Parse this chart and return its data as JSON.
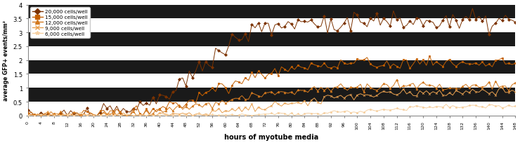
{
  "title": "",
  "xlabel": "hours of myotube media",
  "ylabel": "average GFP+ events/mm²",
  "xlim": [
    0,
    148
  ],
  "ylim": [
    0,
    4
  ],
  "yticks": [
    0,
    0.5,
    1,
    1.5,
    2,
    2.5,
    3,
    3.5,
    4
  ],
  "xtick_step": 4,
  "legend_labels": [
    "20,000 cells/well",
    "15,000 cells/well",
    "12,000 cells/well",
    "9,000 cells/well",
    "6,000 cells/well"
  ],
  "line_colors": [
    "#7B3200",
    "#C45F00",
    "#D2781E",
    "#E8A050",
    "#F5CFA0"
  ],
  "markers": [
    "D",
    "s",
    "^",
    "x",
    "*"
  ],
  "bg_bands": [
    [
      0.0,
      0.5,
      true
    ],
    [
      0.5,
      1.0,
      false
    ],
    [
      1.0,
      1.5,
      true
    ],
    [
      1.5,
      2.0,
      false
    ],
    [
      2.0,
      2.5,
      true
    ],
    [
      2.5,
      3.0,
      false
    ],
    [
      3.0,
      3.5,
      true
    ],
    [
      3.5,
      4.0,
      false
    ]
  ],
  "band_black": "#1a1a1a",
  "band_white": "#ffffff",
  "figsize": [
    7.4,
    2.05
  ],
  "dpi": 100,
  "series": [
    {
      "cell_count": 20000,
      "inflection": 52,
      "rate": 0.13,
      "max_val": 3.4,
      "noise_scale": 0.2,
      "early_noise": 0.15,
      "seed": 10
    },
    {
      "cell_count": 15000,
      "inflection": 58,
      "rate": 0.1,
      "max_val": 1.9,
      "noise_scale": 0.12,
      "early_noise": 0.1,
      "seed": 20
    },
    {
      "cell_count": 12000,
      "inflection": 60,
      "rate": 0.09,
      "max_val": 1.05,
      "noise_scale": 0.09,
      "early_noise": 0.08,
      "seed": 30
    },
    {
      "cell_count": 9000,
      "inflection": 78,
      "rate": 0.09,
      "max_val": 0.85,
      "noise_scale": 0.07,
      "early_noise": 0.06,
      "seed": 40
    },
    {
      "cell_count": 6000,
      "inflection": 105,
      "rate": 0.07,
      "max_val": 0.38,
      "noise_scale": 0.04,
      "early_noise": 0.03,
      "seed": 50
    }
  ]
}
